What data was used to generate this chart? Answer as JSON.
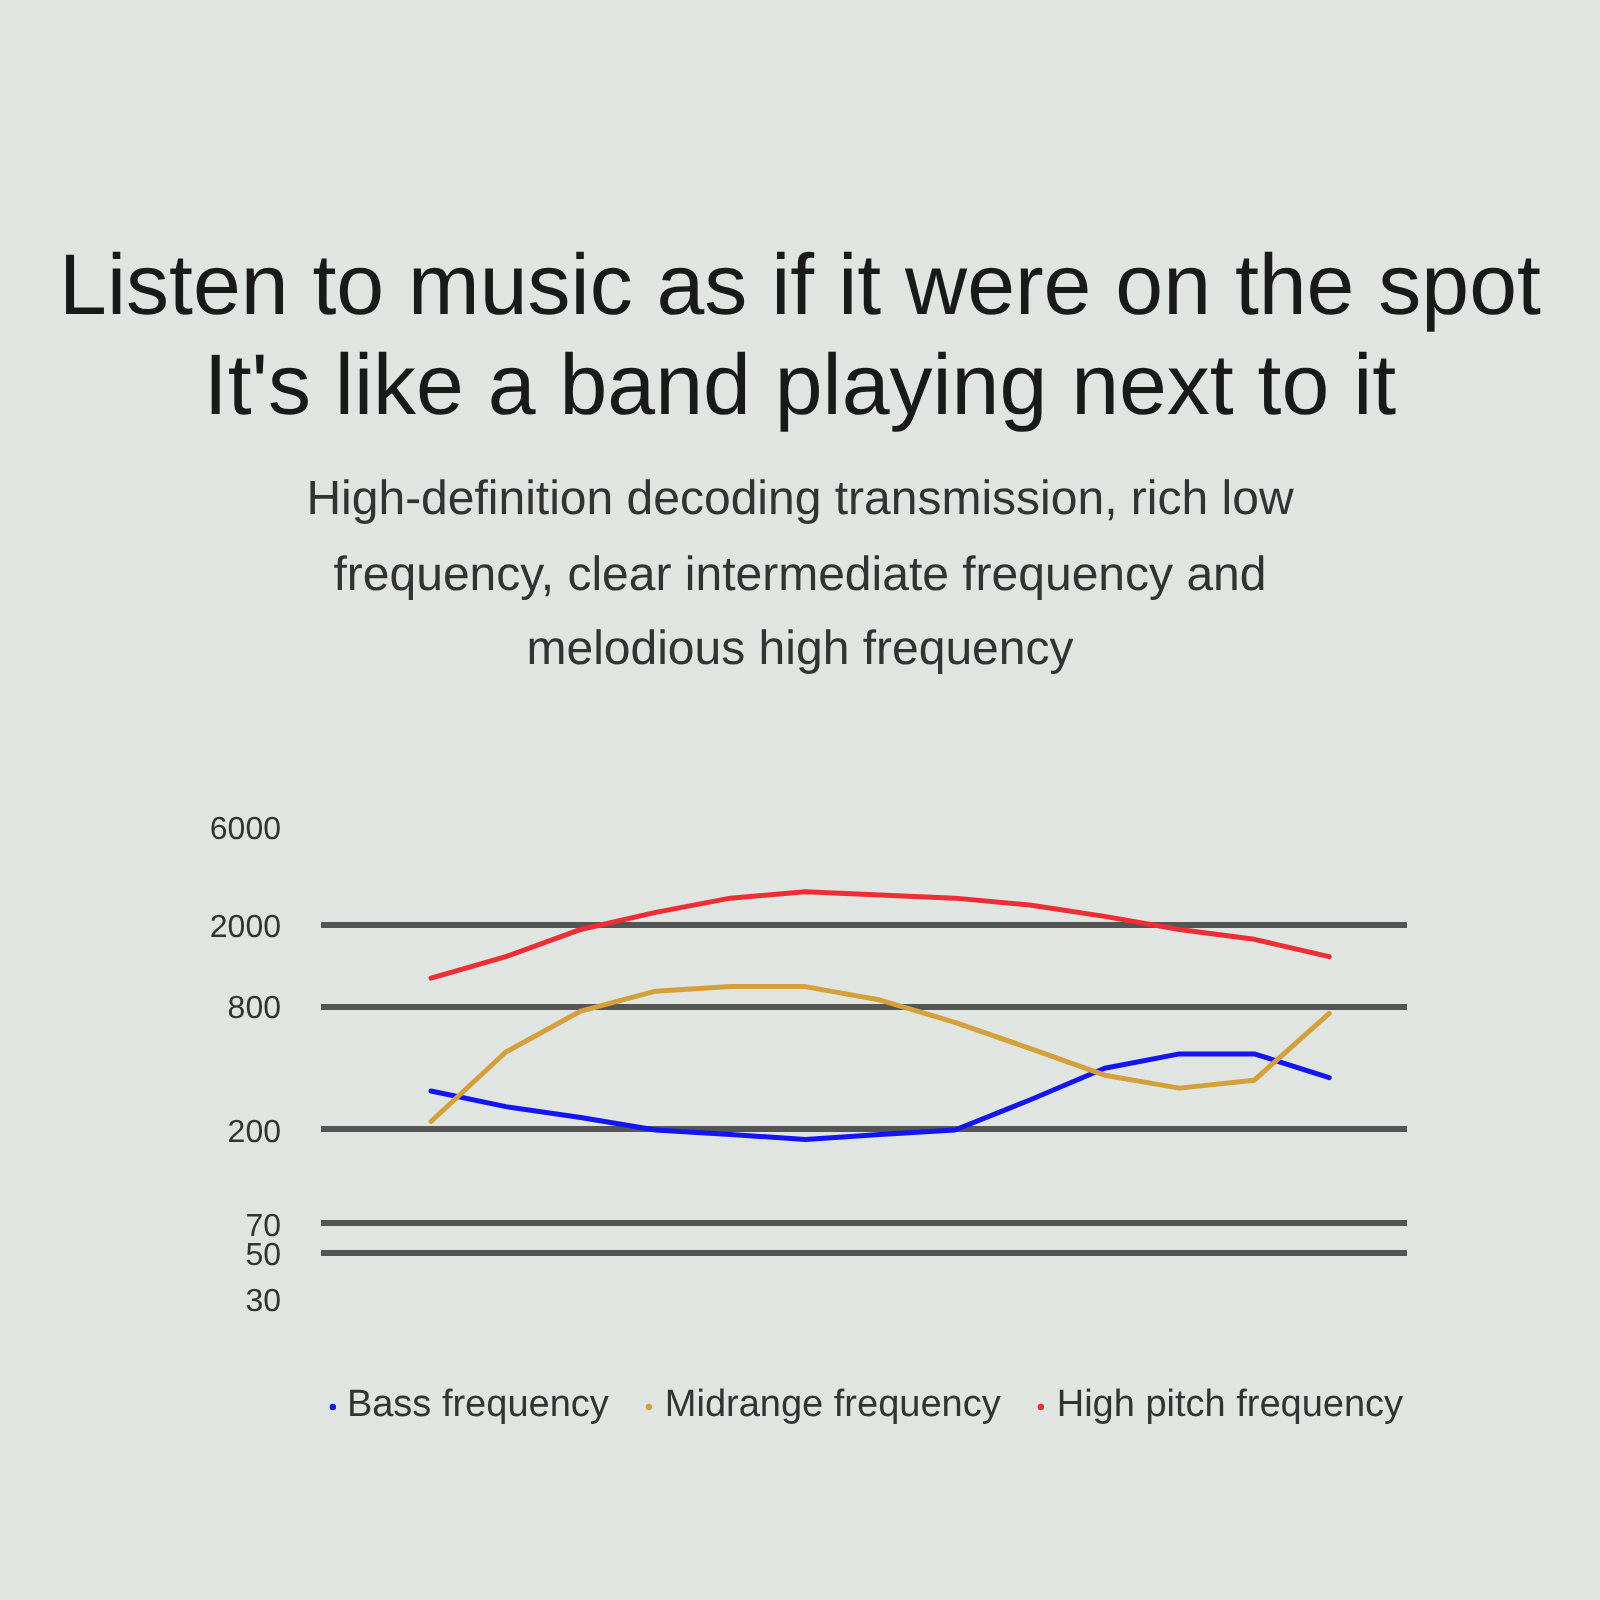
{
  "chart_data": {
    "type": "line",
    "title": "Listen to music as if it were on the spot It's like a band playing next to it",
    "subtitle": "High-definition decoding transmission, rich low frequency, clear intermediate frequency and melodious high frequency",
    "categories": [
      null,
      null,
      null,
      null,
      null,
      null,
      null,
      null,
      null,
      null,
      null,
      null,
      null
    ],
    "series": [
      {
        "name": "Bass frequency",
        "color": "#1414f5",
        "values": [
          310,
          260,
          230,
          200,
          190,
          180,
          190,
          200,
          280,
          400,
          470,
          470,
          360
        ]
      },
      {
        "name": "Midrange frequency",
        "color": "#d4a03c",
        "values": [
          220,
          480,
          760,
          950,
          1000,
          1000,
          860,
          670,
          500,
          370,
          320,
          350,
          740
        ]
      },
      {
        "name": "High pitch frequency",
        "color": "#ee2e34",
        "values": [
          1100,
          1400,
          1900,
          2300,
          2700,
          2900,
          2800,
          2700,
          2500,
          2200,
          1900,
          1700,
          1400
        ]
      }
    ],
    "ylim": [
      30,
      6000
    ],
    "yticks": [
      30,
      50,
      70,
      200,
      800,
      2000,
      6000
    ],
    "log": true,
    "grid": "y",
    "legend": "bottom",
    "tick_labels": "y"
  }
}
